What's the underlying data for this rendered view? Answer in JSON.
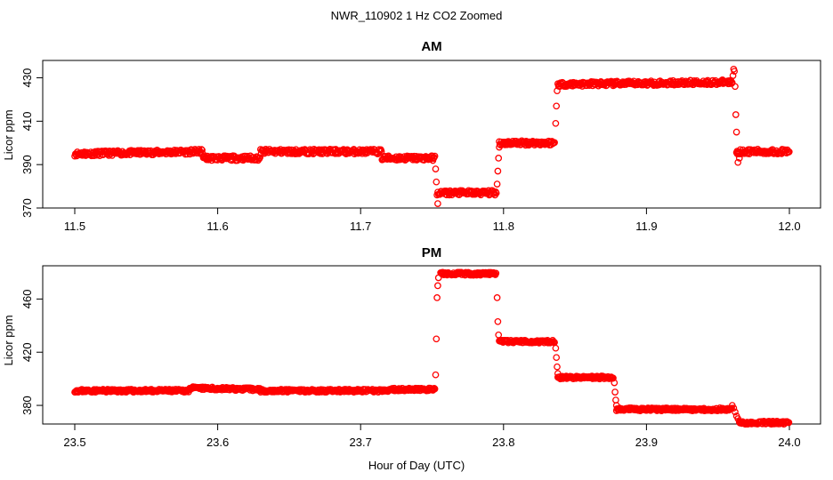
{
  "figure": {
    "title": "NWR_110902  1 Hz CO2 Zoomed",
    "xlabel": "Hour of Day (UTC)"
  },
  "chart_data": [
    {
      "type": "scatter",
      "title": "AM",
      "xlabel": "",
      "ylabel": "Licor ppm",
      "xlim": [
        11.5,
        12.0
      ],
      "ylim": [
        370,
        438
      ],
      "xticks": [
        "11.5",
        "11.6",
        "11.7",
        "11.8",
        "11.9",
        "12.0"
      ],
      "yticks": [
        "370",
        "390",
        "410",
        "430"
      ],
      "marker_color": "#ff0000",
      "segments": [
        {
          "x": [
            11.5,
            11.59
          ],
          "y": [
            395,
            396
          ]
        },
        {
          "x": [
            11.59,
            11.63
          ],
          "y": [
            393,
            393
          ]
        },
        {
          "x": [
            11.63,
            11.715
          ],
          "y": [
            396,
            396
          ]
        },
        {
          "x": [
            11.715,
            11.752
          ],
          "y": [
            393,
            393
          ]
        },
        {
          "x": [
            11.754,
            11.795
          ],
          "y": [
            377,
            377
          ]
        },
        {
          "x": [
            11.797,
            11.836
          ],
          "y": [
            400,
            400
          ]
        },
        {
          "x": [
            11.838,
            11.96
          ],
          "y": [
            427,
            428
          ]
        },
        {
          "x": [
            11.963,
            12.0
          ],
          "y": [
            396,
            396
          ]
        }
      ],
      "transitions": [
        {
          "x": 11.7525,
          "y": 388
        },
        {
          "x": 11.753,
          "y": 382
        },
        {
          "x": 11.7535,
          "y": 376
        },
        {
          "x": 11.754,
          "y": 372
        },
        {
          "x": 11.7955,
          "y": 381
        },
        {
          "x": 11.796,
          "y": 387
        },
        {
          "x": 11.7965,
          "y": 393
        },
        {
          "x": 11.797,
          "y": 398
        },
        {
          "x": 11.8365,
          "y": 409
        },
        {
          "x": 11.837,
          "y": 417
        },
        {
          "x": 11.8375,
          "y": 424
        },
        {
          "x": 11.9605,
          "y": 431
        },
        {
          "x": 11.961,
          "y": 434
        },
        {
          "x": 11.9615,
          "y": 433
        },
        {
          "x": 11.962,
          "y": 426
        },
        {
          "x": 11.9625,
          "y": 413
        },
        {
          "x": 11.963,
          "y": 405
        },
        {
          "x": 11.9635,
          "y": 395
        },
        {
          "x": 11.964,
          "y": 391
        },
        {
          "x": 11.965,
          "y": 393
        }
      ]
    },
    {
      "type": "scatter",
      "title": "PM",
      "xlabel": "",
      "ylabel": "Licor ppm",
      "xlim": [
        23.5,
        24.0
      ],
      "ylim": [
        366,
        485
      ],
      "xticks": [
        "23.5",
        "23.6",
        "23.7",
        "23.8",
        "23.9",
        "24.0"
      ],
      "yticks": [
        "380",
        "420",
        "460"
      ],
      "marker_color": "#ff0000",
      "segments": [
        {
          "x": [
            23.5,
            23.58
          ],
          "y": [
            391,
            391
          ]
        },
        {
          "x": [
            23.58,
            23.63
          ],
          "y": [
            393,
            392
          ]
        },
        {
          "x": [
            23.63,
            23.72
          ],
          "y": [
            391,
            391
          ]
        },
        {
          "x": [
            23.72,
            23.752
          ],
          "y": [
            392,
            392
          ]
        },
        {
          "x": [
            23.756,
            23.795
          ],
          "y": [
            479,
            479
          ]
        },
        {
          "x": [
            23.797,
            23.836
          ],
          "y": [
            428,
            428
          ]
        },
        {
          "x": [
            23.838,
            23.877
          ],
          "y": [
            401,
            401
          ]
        },
        {
          "x": [
            23.879,
            23.96
          ],
          "y": [
            377,
            377
          ]
        },
        {
          "x": [
            23.965,
            24.0
          ],
          "y": [
            367,
            367
          ]
        }
      ],
      "transitions": [
        {
          "x": 23.7525,
          "y": 403
        },
        {
          "x": 23.753,
          "y": 430
        },
        {
          "x": 23.7535,
          "y": 461
        },
        {
          "x": 23.754,
          "y": 470
        },
        {
          "x": 23.7545,
          "y": 476
        },
        {
          "x": 23.7955,
          "y": 461
        },
        {
          "x": 23.796,
          "y": 443
        },
        {
          "x": 23.7965,
          "y": 433
        },
        {
          "x": 23.8365,
          "y": 423
        },
        {
          "x": 23.837,
          "y": 416
        },
        {
          "x": 23.8375,
          "y": 409
        },
        {
          "x": 23.838,
          "y": 404
        },
        {
          "x": 23.8775,
          "y": 397
        },
        {
          "x": 23.878,
          "y": 390
        },
        {
          "x": 23.8785,
          "y": 384
        },
        {
          "x": 23.879,
          "y": 380
        },
        {
          "x": 23.96,
          "y": 380
        },
        {
          "x": 23.961,
          "y": 378
        },
        {
          "x": 23.962,
          "y": 375
        },
        {
          "x": 23.963,
          "y": 372
        },
        {
          "x": 23.964,
          "y": 370
        },
        {
          "x": 23.965,
          "y": 368
        }
      ]
    }
  ]
}
